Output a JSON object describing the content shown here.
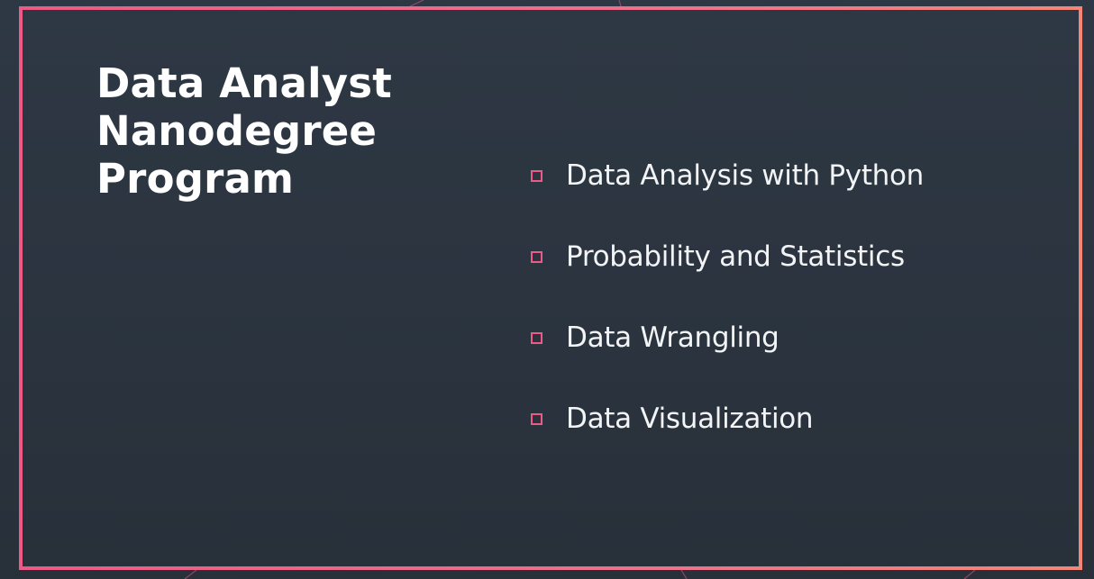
{
  "slide": {
    "title_lines": [
      "Data Analyst",
      "Nanodegree",
      "Program"
    ],
    "items": [
      {
        "label": "Data Analysis with Python"
      },
      {
        "label": "Probability and Statistics"
      },
      {
        "label": "Data Wrangling"
      },
      {
        "label": "Data Visualization"
      }
    ]
  },
  "colors": {
    "background": "#2a323d",
    "frame_pink": "#ee5a85",
    "frame_orange": "#f58577",
    "title_text": "#ffffff",
    "item_text": "#f2f4f6",
    "bullet": "#ee5a85"
  },
  "icons": {
    "bullet": "square-outline-icon"
  }
}
